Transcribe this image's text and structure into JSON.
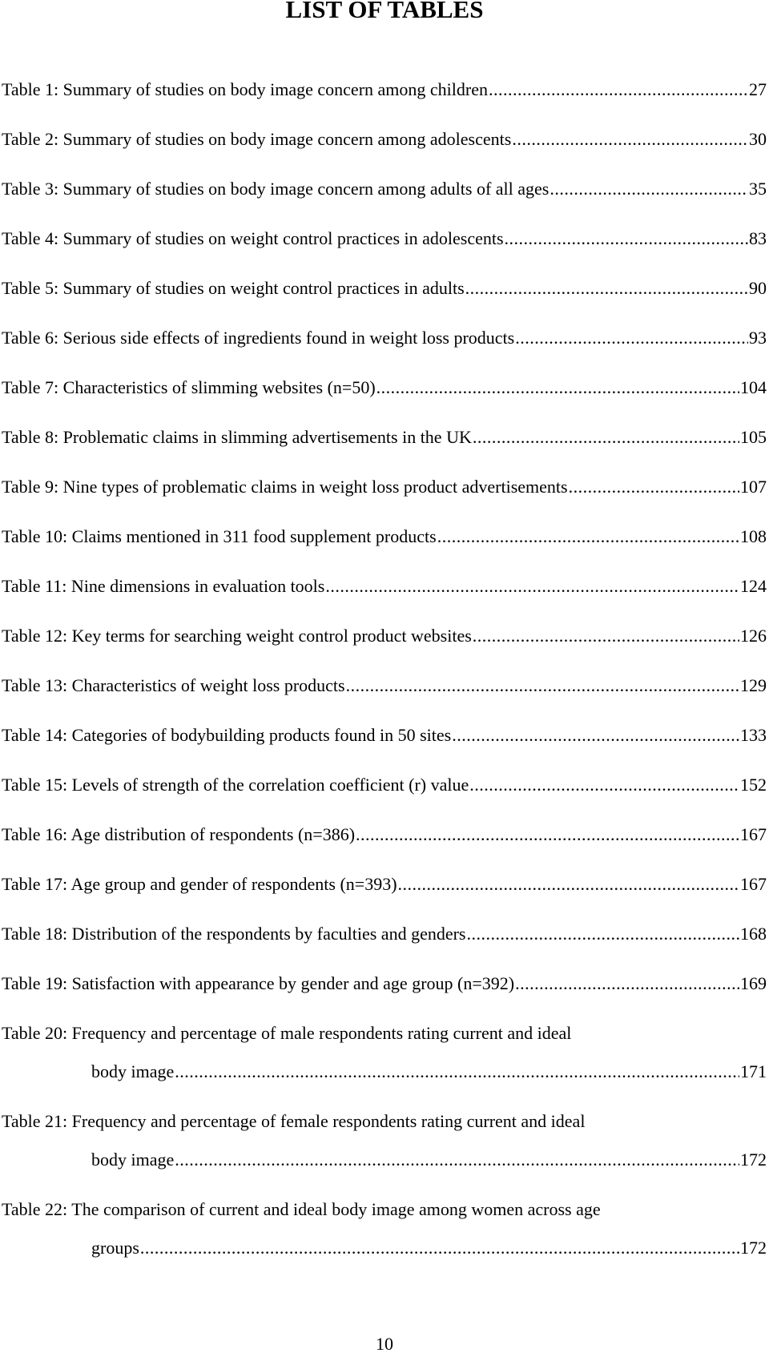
{
  "page": {
    "title": "LIST OF TABLES",
    "page_number": "10"
  },
  "entries": [
    {
      "label": "Table 1: Summary of studies on body image concern among children",
      "page": "27"
    },
    {
      "label": "Table 2: Summary of studies on body image concern among adolescents",
      "page": "30"
    },
    {
      "label": "Table 3: Summary of studies on body image concern among adults of all ages",
      "page": "35"
    },
    {
      "label": "Table 4: Summary of studies on weight control practices in adolescents",
      "page": "83"
    },
    {
      "label": "Table 5: Summary of studies on weight control practices in adults",
      "page": "90"
    },
    {
      "label": "Table 6: Serious side effects of ingredients found in weight loss products",
      "page": "93"
    },
    {
      "label": "Table 7: Characteristics of slimming websites (n=50)",
      "page": "104"
    },
    {
      "label": "Table 8: Problematic claims in slimming advertisements in the UK",
      "page": "105"
    },
    {
      "label": "Table 9: Nine types of problematic claims in weight loss product advertisements",
      "page": "107"
    },
    {
      "label": "Table 10: Claims mentioned in 311 food supplement products",
      "page": "108"
    },
    {
      "label": "Table 11: Nine dimensions in evaluation tools",
      "page": "124"
    },
    {
      "label": "Table 12: Key terms for searching weight control product websites",
      "page": "126"
    },
    {
      "label": "Table 13: Characteristics of weight loss products",
      "page": "129"
    },
    {
      "label": "Table 14: Categories of bodybuilding products found in 50 sites",
      "page": "133"
    },
    {
      "label": "Table 15: Levels of strength of the correlation coefficient (r) value",
      "page": "152"
    },
    {
      "label": "Table 16: Age distribution of respondents (n=386)",
      "page": "167"
    },
    {
      "label": "Table 17: Age group and gender of respondents (n=393)",
      "page": "167"
    },
    {
      "label": "Table 18: Distribution of the respondents by faculties and genders",
      "page": "168"
    },
    {
      "label": "Table 19: Satisfaction with appearance by gender and age group (n=392)",
      "page": "169"
    },
    {
      "label": "Table 20: Frequency and percentage of male respondents rating current and ideal",
      "continuation": "body image",
      "page": "171"
    },
    {
      "label": "Table 21: Frequency and percentage of female respondents rating current and ideal",
      "continuation": "body image",
      "page": "172"
    },
    {
      "label": "Table 22: The comparison of current and ideal body image among women across age",
      "continuation": "groups",
      "page": "172"
    }
  ]
}
